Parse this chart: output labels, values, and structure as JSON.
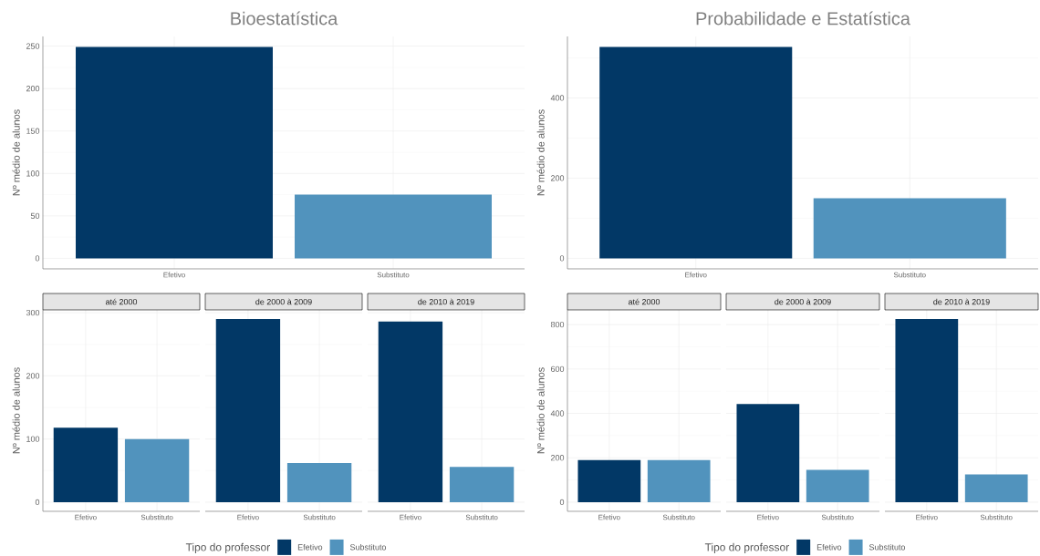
{
  "chart_data": [
    {
      "type": "bar",
      "title": "Bioestatística",
      "ylabel": "Nº médio de alunos",
      "categories": [
        "Efetivo",
        "Substituto"
      ],
      "values": [
        249,
        75
      ],
      "colors": [
        "#023866",
        "#5193bd"
      ],
      "ylim": [
        -12.45,
        261.45
      ],
      "yticks": [
        0,
        50,
        100,
        150,
        200,
        250
      ],
      "grid": true
    },
    {
      "type": "bar",
      "title": "Probabilidade e Estatística",
      "ylabel": "Nº médio de alunos",
      "categories": [
        "Efetivo",
        "Substituto"
      ],
      "values": [
        527,
        150
      ],
      "colors": [
        "#023866",
        "#5193bd"
      ],
      "ylim": [
        -26.35,
        553.35
      ],
      "yticks": [
        0,
        200,
        400
      ],
      "grid": true
    },
    {
      "type": "bar",
      "subtitle": "até 2000",
      "ylabel": "Nº médio de alunos",
      "categories": [
        "Efetivo",
        "Substituto"
      ],
      "series": [
        {
          "color": "#023866",
          "values": [
            118,
            null
          ]
        },
        {
          "color": "#5193bd",
          "values": [
            null,
            100
          ]
        }
      ],
      "ylim": [
        -14.5,
        304.5
      ],
      "yticks": [
        0,
        100,
        200,
        300
      ],
      "grid": true
    },
    {
      "type": "bar",
      "subtitle": "de 2000 à 2009",
      "categories": [
        "Efetivo",
        "Substituto"
      ],
      "series": [
        {
          "name": "Efetivo",
          "color": "#023866",
          "values": [
            290,
            null
          ]
        },
        {
          "name": "Substituto",
          "color": "#5193bd",
          "values": [
            null,
            62
          ]
        }
      ],
      "ylim": [
        -14.5,
        304.5
      ],
      "yticks": [
        0,
        100,
        200,
        300
      ],
      "grid": true,
      "tick_labels": "x",
      "legend": "bottom",
      "legend_title": "Tipo do professor"
    },
    {
      "type": "bar",
      "subtitle": "de 2010 à 2019",
      "categories": [
        "Efetivo",
        "Substituto"
      ],
      "series": [
        {
          "color": "#023866",
          "values": [
            286,
            null
          ]
        },
        {
          "color": "#5193bd",
          "values": [
            null,
            56
          ]
        }
      ],
      "ylim": [
        -14.5,
        304.5
      ],
      "yticks": [
        0,
        100,
        200,
        300
      ],
      "grid": true,
      "tick_labels": "x"
    },
    {
      "type": "bar",
      "subtitle": "até 2000",
      "ylabel": "Nº médio de alunos",
      "categories": [
        "Efetivo",
        "Substituto"
      ],
      "series": [
        {
          "color": "#023866",
          "values": [
            190,
            null
          ]
        },
        {
          "color": "#5193bd",
          "values": [
            null,
            190
          ]
        }
      ],
      "ylim": [
        -41.25,
        866.25
      ],
      "yticks": [
        0,
        200,
        400,
        600,
        800
      ],
      "grid": true
    },
    {
      "type": "bar",
      "subtitle": "de 2000 à 2009",
      "categories": [
        "Efetivo",
        "Substituto"
      ],
      "series": [
        {
          "name": "Efetivo",
          "color": "#023866",
          "values": [
            442,
            null
          ]
        },
        {
          "name": "Substituto",
          "color": "#5193bd",
          "values": [
            null,
            146
          ]
        }
      ],
      "ylim": [
        -41.25,
        866.25
      ],
      "yticks": [
        0,
        200,
        400,
        600,
        800
      ],
      "grid": true,
      "tick_labels": "x",
      "legend": "bottom",
      "legend_title": "Tipo do professor"
    },
    {
      "type": "bar",
      "subtitle": "de 2010 à 2019",
      "categories": [
        "Efetivo",
        "Substituto"
      ],
      "series": [
        {
          "color": "#023866",
          "values": [
            825,
            null
          ]
        },
        {
          "color": "#5193bd",
          "values": [
            null,
            125
          ]
        }
      ],
      "ylim": [
        -41.25,
        866.25
      ],
      "yticks": [
        0,
        200,
        400,
        600,
        800
      ],
      "grid": true,
      "tick_labels": "x"
    }
  ]
}
